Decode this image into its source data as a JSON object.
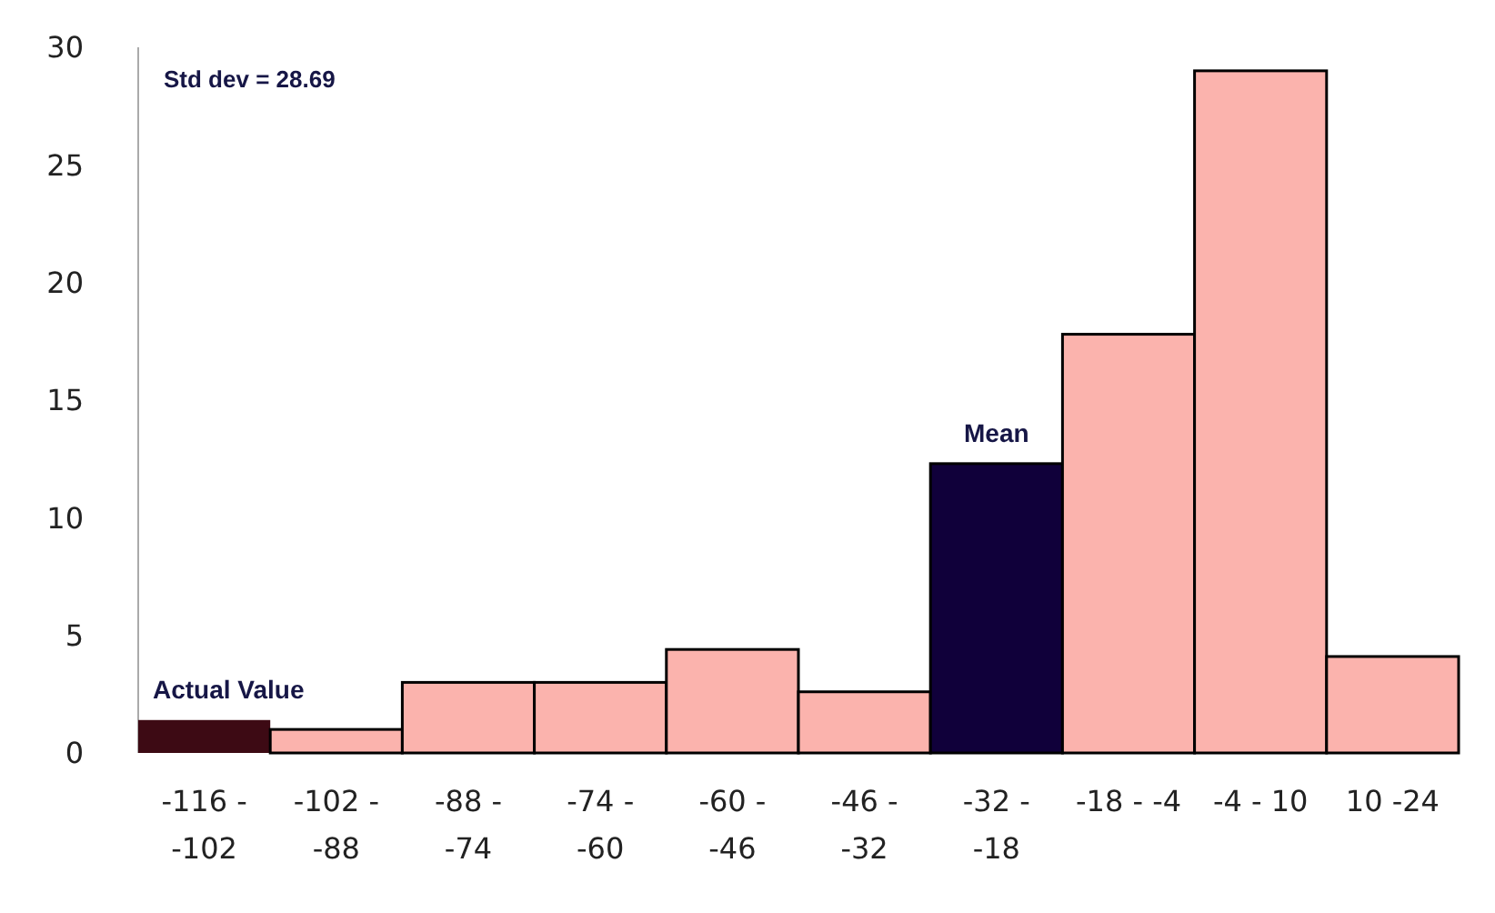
{
  "chart_data": {
    "type": "bar",
    "categories": [
      "-116 - -102",
      "-102 - -88",
      "-88 - -74",
      "-74 - -60",
      "-60 - -46",
      "-46 - -32",
      "-32 - -18",
      "-18 - -4",
      "-4 - 10",
      "10 -24"
    ],
    "values": [
      1.4,
      1.0,
      3.0,
      3.0,
      4.4,
      2.6,
      12.3,
      17.8,
      29,
      4.1
    ],
    "colors": [
      "#3d0a14",
      "#fbb3ad",
      "#fbb3ad",
      "#fbb3ad",
      "#fbb3ad",
      "#fbb3ad",
      "#10003a",
      "#fbb3ad",
      "#fbb3ad",
      "#fbb3ad"
    ],
    "ylim": [
      0,
      30
    ],
    "yticks": [
      0,
      5,
      10,
      15,
      20,
      25,
      30
    ],
    "grid": false,
    "annotations": [
      "Std dev = 28.69",
      {
        "text": "Actual Value",
        "x": "-116 - -102",
        "y": 1.4
      },
      {
        "text": "Mean",
        "x": "-32 - -18",
        "y": 12.3
      }
    ]
  }
}
